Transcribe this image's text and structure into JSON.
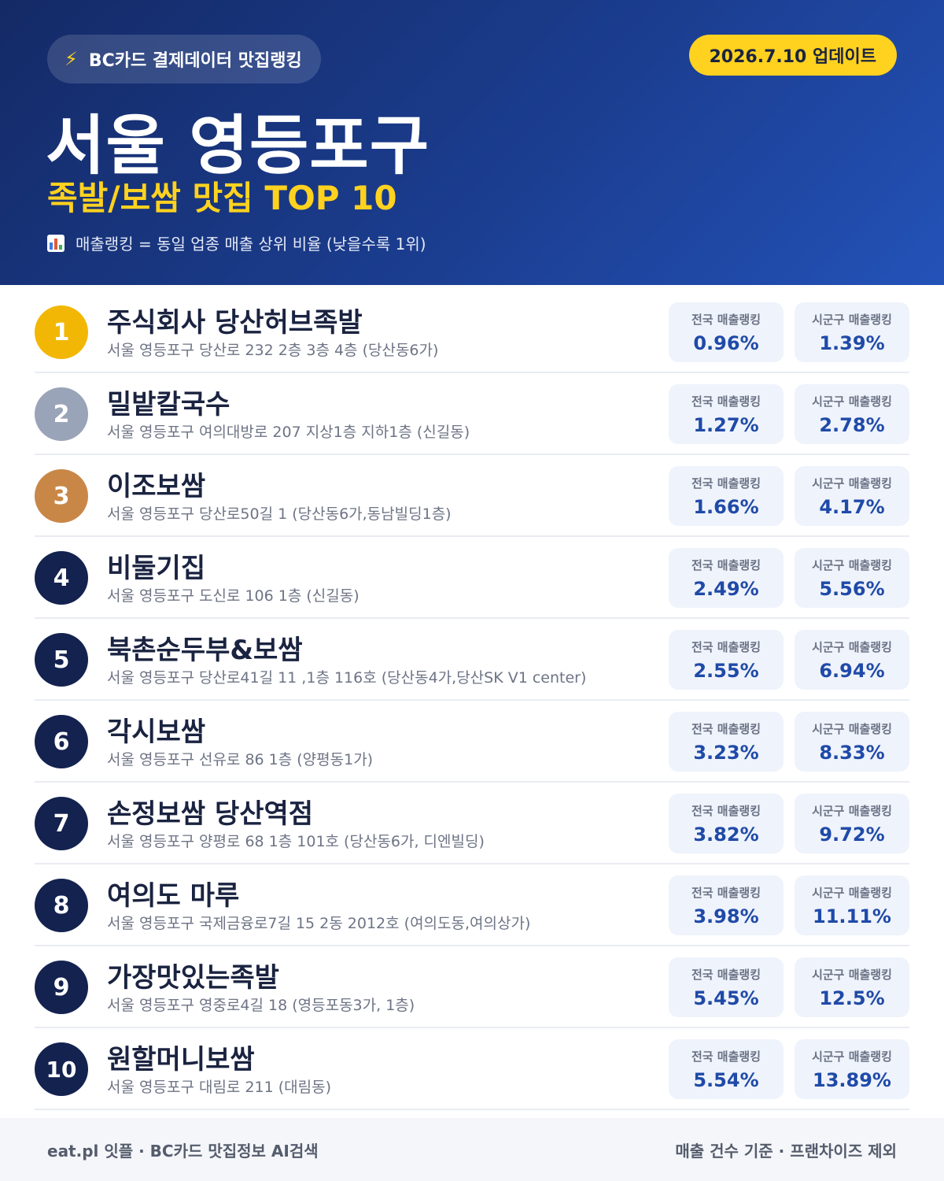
{
  "header": {
    "source_label": "BC카드 결제데이터 맛집랭킹",
    "update_label": "2026.7.10 업데이트",
    "title": "서울 영등포구",
    "subtitle": "족발/보쌈 맛집 TOP 10",
    "note": "매출랭킹 = 동일 업종 매출 상위 비율 (낮을수록 1위)",
    "icons": {
      "source": "lightning-icon",
      "note": "bar-chart-icon"
    }
  },
  "stat_labels": {
    "national": "전국 매출랭킹",
    "local": "시군구 매출랭킹"
  },
  "rank_colors": {
    "gold": "#f2b705",
    "silver": "#9aa4b8",
    "bronze": "#c98747",
    "default": "#142250"
  },
  "items": [
    {
      "rank": "1",
      "name": "주식회사 당산허브족발",
      "address": "서울 영등포구 당산로 232 2층 3층 4층 (당산동6가)",
      "national": "0.96%",
      "local": "1.39%"
    },
    {
      "rank": "2",
      "name": "밀밭칼국수",
      "address": "서울 영등포구 여의대방로 207 지상1층 지하1층 (신길동)",
      "national": "1.27%",
      "local": "2.78%"
    },
    {
      "rank": "3",
      "name": "이조보쌈",
      "address": "서울 영등포구 당산로50길 1 (당산동6가,동남빌딩1층)",
      "national": "1.66%",
      "local": "4.17%"
    },
    {
      "rank": "4",
      "name": "비둘기집",
      "address": "서울 영등포구 도신로 106 1층 (신길동)",
      "national": "2.49%",
      "local": "5.56%"
    },
    {
      "rank": "5",
      "name": "북촌순두부&보쌈",
      "address": "서울 영등포구 당산로41길 11 ,1층 116호 (당산동4가,당산SK V1 center)",
      "national": "2.55%",
      "local": "6.94%"
    },
    {
      "rank": "6",
      "name": "각시보쌈",
      "address": "서울 영등포구 선유로 86 1층 (양평동1가)",
      "national": "3.23%",
      "local": "8.33%"
    },
    {
      "rank": "7",
      "name": "손정보쌈 당산역점",
      "address": "서울 영등포구 양평로 68 1층 101호 (당산동6가, 디엔빌딩)",
      "national": "3.82%",
      "local": "9.72%"
    },
    {
      "rank": "8",
      "name": "여의도 마루",
      "address": "서울 영등포구 국제금융로7길 15 2동 2012호 (여의도동,여의상가)",
      "national": "3.98%",
      "local": "11.11%"
    },
    {
      "rank": "9",
      "name": "가장맛있는족발",
      "address": "서울 영등포구 영중로4길 18 (영등포동3가, 1층)",
      "national": "5.45%",
      "local": "12.5%"
    },
    {
      "rank": "10",
      "name": "원할머니보쌈",
      "address": "서울 영등포구 대림로 211 (대림동)",
      "national": "5.54%",
      "local": "13.89%"
    }
  ],
  "footer": {
    "left": "eat.pl 잇플 · BC카드 맛집정보 AI검색",
    "right": "매출 건수 기준 · 프랜차이즈 제외"
  }
}
